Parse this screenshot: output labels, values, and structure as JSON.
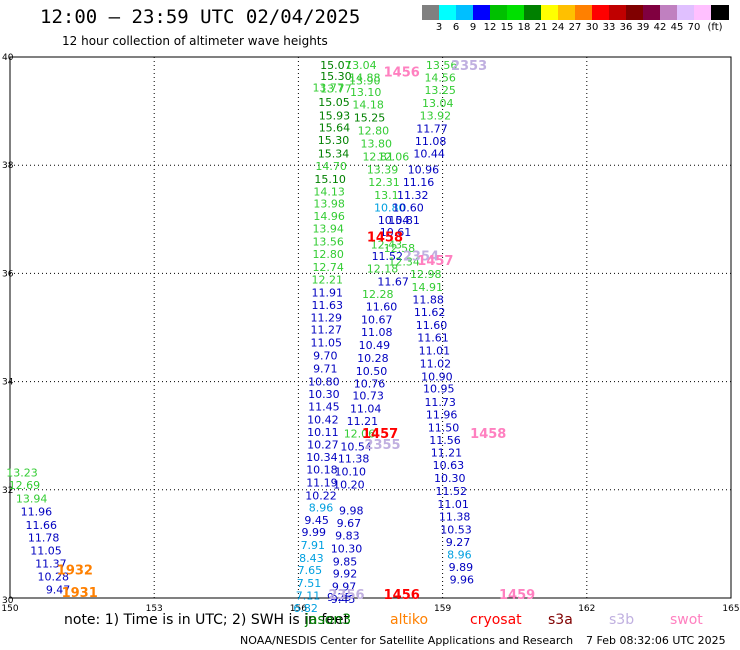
{
  "header": {
    "title": "12:00 – 23:59 UTC 02/04/2025",
    "subtitle": "12 hour collection of altimeter wave heights"
  },
  "colorbar": {
    "colors": [
      "#808080",
      "#00ffff",
      "#00bfff",
      "#0000ff",
      "#00c000",
      "#00e000",
      "#008000",
      "#ffff00",
      "#ffc000",
      "#ff8000",
      "#ff0000",
      "#c00000",
      "#800000",
      "#800040",
      "#c080c0",
      "#e0c0ff",
      "#ffc0ff",
      "#000000"
    ],
    "labels": [
      "3",
      "6",
      "9",
      "12",
      "15",
      "18",
      "21",
      "24",
      "27",
      "30",
      "33",
      "36",
      "39",
      "42",
      "45",
      "70",
      "(ft)"
    ]
  },
  "footer": {
    "note": "note:  1) Time is in UTC; 2) SWH is in feet",
    "satellites": [
      {
        "name": "jason3",
        "color": "#008000"
      },
      {
        "name": "altiko",
        "color": "#ff8000"
      },
      {
        "name": "cryosat",
        "color": "#ff0000"
      },
      {
        "name": "s3a",
        "color": "#800000"
      },
      {
        "name": "s3b",
        "color": "#c0b0e0"
      },
      {
        "name": "swot",
        "color": "#ff80c0"
      }
    ],
    "credit": "NOAA/NESDIS Center for Satellite Applications and Research",
    "timestamp": "7 Feb 08:32:06 UTC 2025"
  },
  "chart_data": {
    "type": "scatter",
    "title": "12:00 – 23:59 UTC 02/04/2025",
    "xlim": [
      150,
      165
    ],
    "ylim": [
      30,
      40
    ],
    "x_ticks": [
      "150",
      "153",
      "156",
      "159",
      "162",
      "165"
    ],
    "y_ticks": [
      "30",
      "32",
      "34",
      "36",
      "38",
      "40"
    ],
    "grid": true,
    "labels": [
      {
        "x": 156.78,
        "y": 39.83,
        "text": "15.07",
        "color": "#008000"
      },
      {
        "x": 156.78,
        "y": 39.63,
        "text": "15.30",
        "color": "#008000"
      },
      {
        "x": 156.78,
        "y": 39.4,
        "text": "13.77",
        "color": "#33cc33"
      },
      {
        "x": 156.74,
        "y": 39.15,
        "text": "15.05",
        "color": "#008000"
      },
      {
        "x": 156.75,
        "y": 38.9,
        "text": "15.93",
        "color": "#008000"
      },
      {
        "x": 156.75,
        "y": 38.68,
        "text": "15.64",
        "color": "#008000"
      },
      {
        "x": 156.73,
        "y": 38.45,
        "text": "15.30",
        "color": "#008000"
      },
      {
        "x": 156.73,
        "y": 38.2,
        "text": "15.34",
        "color": "#008000"
      },
      {
        "x": 156.68,
        "y": 37.97,
        "text": "14.70",
        "color": "#33cc33"
      },
      {
        "x": 156.66,
        "y": 37.73,
        "text": "15.10",
        "color": "#008000"
      },
      {
        "x": 156.64,
        "y": 37.5,
        "text": "14.13",
        "color": "#33cc33"
      },
      {
        "x": 156.64,
        "y": 37.27,
        "text": "13.98",
        "color": "#33cc33"
      },
      {
        "x": 156.64,
        "y": 37.04,
        "text": "14.96",
        "color": "#33cc33"
      },
      {
        "x": 156.62,
        "y": 36.81,
        "text": "13.94",
        "color": "#33cc33"
      },
      {
        "x": 156.62,
        "y": 36.57,
        "text": "13.56",
        "color": "#33cc33"
      },
      {
        "x": 156.62,
        "y": 36.34,
        "text": "12.80",
        "color": "#33cc33"
      },
      {
        "x": 156.62,
        "y": 36.1,
        "text": "12.74",
        "color": "#33cc33"
      },
      {
        "x": 156.6,
        "y": 35.87,
        "text": "12.21",
        "color": "#33cc33"
      },
      {
        "x": 156.6,
        "y": 35.63,
        "text": "11.91",
        "color": "#0000c0"
      },
      {
        "x": 156.6,
        "y": 35.4,
        "text": "11.63",
        "color": "#0000c0"
      },
      {
        "x": 156.58,
        "y": 35.17,
        "text": "11.29",
        "color": "#0000c0"
      },
      {
        "x": 156.58,
        "y": 34.94,
        "text": "11.27",
        "color": "#0000c0"
      },
      {
        "x": 156.58,
        "y": 34.7,
        "text": "11.05",
        "color": "#0000c0"
      },
      {
        "x": 156.56,
        "y": 34.46,
        "text": "9.70",
        "color": "#0000c0"
      },
      {
        "x": 156.56,
        "y": 34.22,
        "text": "9.71",
        "color": "#0000c0"
      },
      {
        "x": 156.53,
        "y": 33.98,
        "text": "10.80",
        "color": "#0000c0"
      },
      {
        "x": 156.53,
        "y": 33.75,
        "text": "10.30",
        "color": "#0000c0"
      },
      {
        "x": 156.53,
        "y": 33.52,
        "text": "11.45",
        "color": "#0000c0"
      },
      {
        "x": 156.51,
        "y": 33.28,
        "text": "10.42",
        "color": "#0000c0"
      },
      {
        "x": 156.51,
        "y": 33.05,
        "text": "10.11",
        "color": "#0000c0"
      },
      {
        "x": 156.51,
        "y": 32.82,
        "text": "10.27",
        "color": "#0000c0"
      },
      {
        "x": 156.49,
        "y": 32.59,
        "text": "10.34",
        "color": "#0000c0"
      },
      {
        "x": 156.49,
        "y": 32.36,
        "text": "10.18",
        "color": "#0000c0"
      },
      {
        "x": 156.49,
        "y": 32.12,
        "text": "11.19",
        "color": "#0000c0"
      },
      {
        "x": 156.47,
        "y": 31.88,
        "text": "10.22",
        "color": "#0000c0"
      },
      {
        "x": 156.47,
        "y": 31.65,
        "text": "8.96",
        "color": "#00a0e0"
      },
      {
        "x": 156.62,
        "y": 39.42,
        "text": "13.77",
        "color": "#33cc33"
      },
      {
        "x": 157.1,
        "y": 31.6,
        "text": "9.98",
        "color": "#0000c0"
      },
      {
        "x": 157.05,
        "y": 31.37,
        "text": "9.67",
        "color": "#0000c0"
      },
      {
        "x": 157.02,
        "y": 31.14,
        "text": "9.83",
        "color": "#0000c0"
      },
      {
        "x": 157.0,
        "y": 30.9,
        "text": "10.30",
        "color": "#0000c0"
      },
      {
        "x": 156.97,
        "y": 30.66,
        "text": "9.85",
        "color": "#0000c0"
      },
      {
        "x": 156.97,
        "y": 30.43,
        "text": "9.92",
        "color": "#0000c0"
      },
      {
        "x": 156.95,
        "y": 30.19,
        "text": "9.97",
        "color": "#0000c0"
      },
      {
        "x": 156.93,
        "y": 29.96,
        "text": "9.45",
        "color": "#0000c0"
      },
      {
        "x": 156.85,
        "y": 30.0,
        "text": "9.25",
        "color": "#0000c0"
      },
      {
        "x": 156.38,
        "y": 31.42,
        "text": "9.45",
        "color": "#0000c0"
      },
      {
        "x": 156.32,
        "y": 31.2,
        "text": "9.99",
        "color": "#0000c0"
      },
      {
        "x": 156.3,
        "y": 30.96,
        "text": "7.91",
        "color": "#00a0e0"
      },
      {
        "x": 156.27,
        "y": 30.72,
        "text": "8.43",
        "color": "#00a0e0"
      },
      {
        "x": 156.24,
        "y": 30.5,
        "text": "7.65",
        "color": "#00a0e0"
      },
      {
        "x": 156.22,
        "y": 30.26,
        "text": "7.51",
        "color": "#00a0e0"
      },
      {
        "x": 156.2,
        "y": 30.03,
        "text": "7.11",
        "color": "#00a0e0"
      },
      {
        "x": 156.15,
        "y": 29.8,
        "text": "6.82",
        "color": "#00a0e0"
      },
      {
        "x": 157.3,
        "y": 39.83,
        "text": "13.04",
        "color": "#33cc33"
      },
      {
        "x": 157.38,
        "y": 39.6,
        "text": "14.88",
        "color": "#33cc33"
      },
      {
        "x": 157.38,
        "y": 39.55,
        "text": "13.90",
        "color": "#33cc33"
      },
      {
        "x": 157.4,
        "y": 39.33,
        "text": "13.10",
        "color": "#33cc33"
      },
      {
        "x": 157.45,
        "y": 39.1,
        "text": "14.18",
        "color": "#33cc33"
      },
      {
        "x": 157.48,
        "y": 38.86,
        "text": "15.25",
        "color": "#008000"
      },
      {
        "x": 157.56,
        "y": 38.62,
        "text": "12.80",
        "color": "#33cc33"
      },
      {
        "x": 157.62,
        "y": 38.38,
        "text": "13.80",
        "color": "#33cc33"
      },
      {
        "x": 157.66,
        "y": 38.14,
        "text": "12.81",
        "color": "#33cc33"
      },
      {
        "x": 157.98,
        "y": 38.14,
        "text": "12.06",
        "color": "#33cc33"
      },
      {
        "x": 157.75,
        "y": 37.9,
        "text": "13.39",
        "color": "#33cc33"
      },
      {
        "x": 157.78,
        "y": 37.67,
        "text": "12.31",
        "color": "#33cc33"
      },
      {
        "x": 157.83,
        "y": 37.43,
        "text": "13.1",
        "color": "#33cc33"
      },
      {
        "x": 157.9,
        "y": 37.2,
        "text": "10.80",
        "color": "#00a0e0"
      },
      {
        "x": 157.98,
        "y": 36.97,
        "text": "10.54",
        "color": "#0000c0"
      },
      {
        "x": 158.02,
        "y": 36.75,
        "text": "10.61",
        "color": "#0000c0"
      },
      {
        "x": 157.83,
        "y": 36.52,
        "text": "12.43",
        "color": "#33cc33"
      },
      {
        "x": 158.1,
        "y": 36.45,
        "text": "12.58",
        "color": "#33cc33"
      },
      {
        "x": 157.85,
        "y": 36.3,
        "text": "11.52",
        "color": "#0000c0"
      },
      {
        "x": 158.2,
        "y": 36.2,
        "text": "12.34",
        "color": "#33cc33"
      },
      {
        "x": 157.75,
        "y": 36.07,
        "text": "12.18",
        "color": "#33cc33"
      },
      {
        "x": 157.97,
        "y": 35.83,
        "text": "11.67",
        "color": "#0000c0"
      },
      {
        "x": 157.65,
        "y": 35.6,
        "text": "12.28",
        "color": "#33cc33"
      },
      {
        "x": 157.73,
        "y": 35.37,
        "text": "11.60",
        "color": "#0000c0"
      },
      {
        "x": 157.63,
        "y": 35.13,
        "text": "10.67",
        "color": "#0000c0"
      },
      {
        "x": 157.63,
        "y": 34.9,
        "text": "11.08",
        "color": "#0000c0"
      },
      {
        "x": 157.58,
        "y": 34.66,
        "text": "10.49",
        "color": "#0000c0"
      },
      {
        "x": 157.55,
        "y": 34.42,
        "text": "10.28",
        "color": "#0000c0"
      },
      {
        "x": 157.52,
        "y": 34.18,
        "text": "10.50",
        "color": "#0000c0"
      },
      {
        "x": 157.48,
        "y": 33.95,
        "text": "10.76",
        "color": "#0000c0"
      },
      {
        "x": 157.45,
        "y": 33.72,
        "text": "10.73",
        "color": "#0000c0"
      },
      {
        "x": 157.4,
        "y": 33.48,
        "text": "11.04",
        "color": "#0000c0"
      },
      {
        "x": 157.33,
        "y": 33.25,
        "text": "11.21",
        "color": "#0000c0"
      },
      {
        "x": 157.27,
        "y": 33.02,
        "text": "12.06",
        "color": "#33cc33"
      },
      {
        "x": 157.2,
        "y": 32.78,
        "text": "10.54",
        "color": "#0000c0"
      },
      {
        "x": 157.15,
        "y": 32.56,
        "text": "11.38",
        "color": "#0000c0"
      },
      {
        "x": 157.08,
        "y": 32.32,
        "text": "10.10",
        "color": "#0000c0"
      },
      {
        "x": 157.05,
        "y": 32.08,
        "text": "10.20",
        "color": "#0000c0"
      },
      {
        "x": 158.98,
        "y": 39.83,
        "text": "13.56",
        "color": "#33cc33"
      },
      {
        "x": 158.95,
        "y": 39.6,
        "text": "14.56",
        "color": "#33cc33"
      },
      {
        "x": 158.95,
        "y": 39.37,
        "text": "13.25",
        "color": "#33cc33"
      },
      {
        "x": 158.9,
        "y": 39.13,
        "text": "13.04",
        "color": "#33cc33"
      },
      {
        "x": 158.85,
        "y": 38.9,
        "text": "13.92",
        "color": "#33cc33"
      },
      {
        "x": 158.78,
        "y": 38.66,
        "text": "11.77",
        "color": "#0000c0"
      },
      {
        "x": 158.75,
        "y": 38.43,
        "text": "11.08",
        "color": "#0000c0"
      },
      {
        "x": 158.72,
        "y": 38.2,
        "text": "10.44",
        "color": "#0000c0"
      },
      {
        "x": 158.6,
        "y": 37.9,
        "text": "10.96",
        "color": "#0000c0"
      },
      {
        "x": 158.5,
        "y": 37.67,
        "text": "11.16",
        "color": "#0000c0"
      },
      {
        "x": 158.38,
        "y": 37.43,
        "text": "11.32",
        "color": "#0000c0"
      },
      {
        "x": 158.28,
        "y": 37.2,
        "text": "10.60",
        "color": "#0000c0"
      },
      {
        "x": 158.2,
        "y": 36.97,
        "text": "10.81",
        "color": "#0000c0"
      },
      {
        "x": 158.65,
        "y": 35.97,
        "text": "12.98",
        "color": "#33cc33"
      },
      {
        "x": 158.68,
        "y": 35.73,
        "text": "14.91",
        "color": "#33cc33"
      },
      {
        "x": 158.7,
        "y": 35.5,
        "text": "11.88",
        "color": "#0000c0"
      },
      {
        "x": 158.73,
        "y": 35.27,
        "text": "11.62",
        "color": "#0000c0"
      },
      {
        "x": 158.77,
        "y": 35.03,
        "text": "11.60",
        "color": "#0000c0"
      },
      {
        "x": 158.8,
        "y": 34.8,
        "text": "11.61",
        "color": "#0000c0"
      },
      {
        "x": 158.83,
        "y": 34.56,
        "text": "11.01",
        "color": "#0000c0"
      },
      {
        "x": 158.85,
        "y": 34.32,
        "text": "11.02",
        "color": "#0000c0"
      },
      {
        "x": 158.88,
        "y": 34.08,
        "text": "10.90",
        "color": "#0000c0"
      },
      {
        "x": 158.92,
        "y": 33.85,
        "text": "10.95",
        "color": "#0000c0"
      },
      {
        "x": 158.95,
        "y": 33.6,
        "text": "11.73",
        "color": "#0000c0"
      },
      {
        "x": 158.98,
        "y": 33.37,
        "text": "11.96",
        "color": "#0000c0"
      },
      {
        "x": 159.02,
        "y": 33.13,
        "text": "11.50",
        "color": "#0000c0"
      },
      {
        "x": 159.05,
        "y": 32.9,
        "text": "11.56",
        "color": "#0000c0"
      },
      {
        "x": 159.08,
        "y": 32.67,
        "text": "11.21",
        "color": "#0000c0"
      },
      {
        "x": 159.12,
        "y": 32.44,
        "text": "10.63",
        "color": "#0000c0"
      },
      {
        "x": 159.15,
        "y": 32.2,
        "text": "10.30",
        "color": "#0000c0"
      },
      {
        "x": 159.18,
        "y": 31.96,
        "text": "11.52",
        "color": "#0000c0"
      },
      {
        "x": 159.22,
        "y": 31.72,
        "text": "11.01",
        "color": "#0000c0"
      },
      {
        "x": 159.25,
        "y": 31.49,
        "text": "11.38",
        "color": "#0000c0"
      },
      {
        "x": 159.28,
        "y": 31.25,
        "text": "10.53",
        "color": "#0000c0"
      },
      {
        "x": 159.32,
        "y": 31.02,
        "text": "9.27",
        "color": "#0000c0"
      },
      {
        "x": 159.35,
        "y": 30.79,
        "text": "8.96",
        "color": "#00a0e0"
      },
      {
        "x": 159.38,
        "y": 30.55,
        "text": "9.89",
        "color": "#0000c0"
      },
      {
        "x": 159.4,
        "y": 30.32,
        "text": "9.96",
        "color": "#0000c0"
      },
      {
        "x": 150.25,
        "y": 32.3,
        "text": "13.23",
        "color": "#33cc33"
      },
      {
        "x": 150.3,
        "y": 32.07,
        "text": "12.69",
        "color": "#33cc33"
      },
      {
        "x": 150.45,
        "y": 31.82,
        "text": "13.94",
        "color": "#33cc33"
      },
      {
        "x": 150.55,
        "y": 31.58,
        "text": "11.96",
        "color": "#0000c0"
      },
      {
        "x": 150.65,
        "y": 31.33,
        "text": "11.66",
        "color": "#0000c0"
      },
      {
        "x": 150.7,
        "y": 31.1,
        "text": "11.78",
        "color": "#0000c0"
      },
      {
        "x": 150.75,
        "y": 30.86,
        "text": "11.05",
        "color": "#0000c0"
      },
      {
        "x": 150.85,
        "y": 30.62,
        "text": "11.37",
        "color": "#0000c0"
      },
      {
        "x": 150.9,
        "y": 30.38,
        "text": "10.28",
        "color": "#0000c0"
      },
      {
        "x": 151.0,
        "y": 30.14,
        "text": "9.47",
        "color": "#0000c0"
      }
    ],
    "time_labels": [
      {
        "x": 158.15,
        "y": 39.7,
        "text": "1456",
        "color": "#ff80c0"
      },
      {
        "x": 159.55,
        "y": 39.82,
        "text": "2353",
        "color": "#c0b0e0"
      },
      {
        "x": 157.8,
        "y": 36.65,
        "text": "1458",
        "color": "#ff0000"
      },
      {
        "x": 158.55,
        "y": 36.3,
        "text": "2354",
        "color": "#c0b0e0"
      },
      {
        "x": 158.85,
        "y": 36.22,
        "text": "1457",
        "color": "#ff80c0"
      },
      {
        "x": 157.7,
        "y": 33.02,
        "text": "1457",
        "color": "#ff0000"
      },
      {
        "x": 157.75,
        "y": 32.82,
        "text": "2355",
        "color": "#c0b0e0"
      },
      {
        "x": 159.95,
        "y": 33.02,
        "text": "1458",
        "color": "#ff80c0"
      },
      {
        "x": 151.35,
        "y": 30.5,
        "text": "1932",
        "color": "#ff8000"
      },
      {
        "x": 151.45,
        "y": 30.08,
        "text": "1931",
        "color": "#ff8000"
      },
      {
        "x": 158.15,
        "y": 30.05,
        "text": "1456",
        "color": "#ff0000"
      },
      {
        "x": 157.0,
        "y": 30.05,
        "text": "2356",
        "color": "#c0b0e0"
      },
      {
        "x": 160.55,
        "y": 30.05,
        "text": "1459",
        "color": "#ff80c0"
      }
    ]
  }
}
